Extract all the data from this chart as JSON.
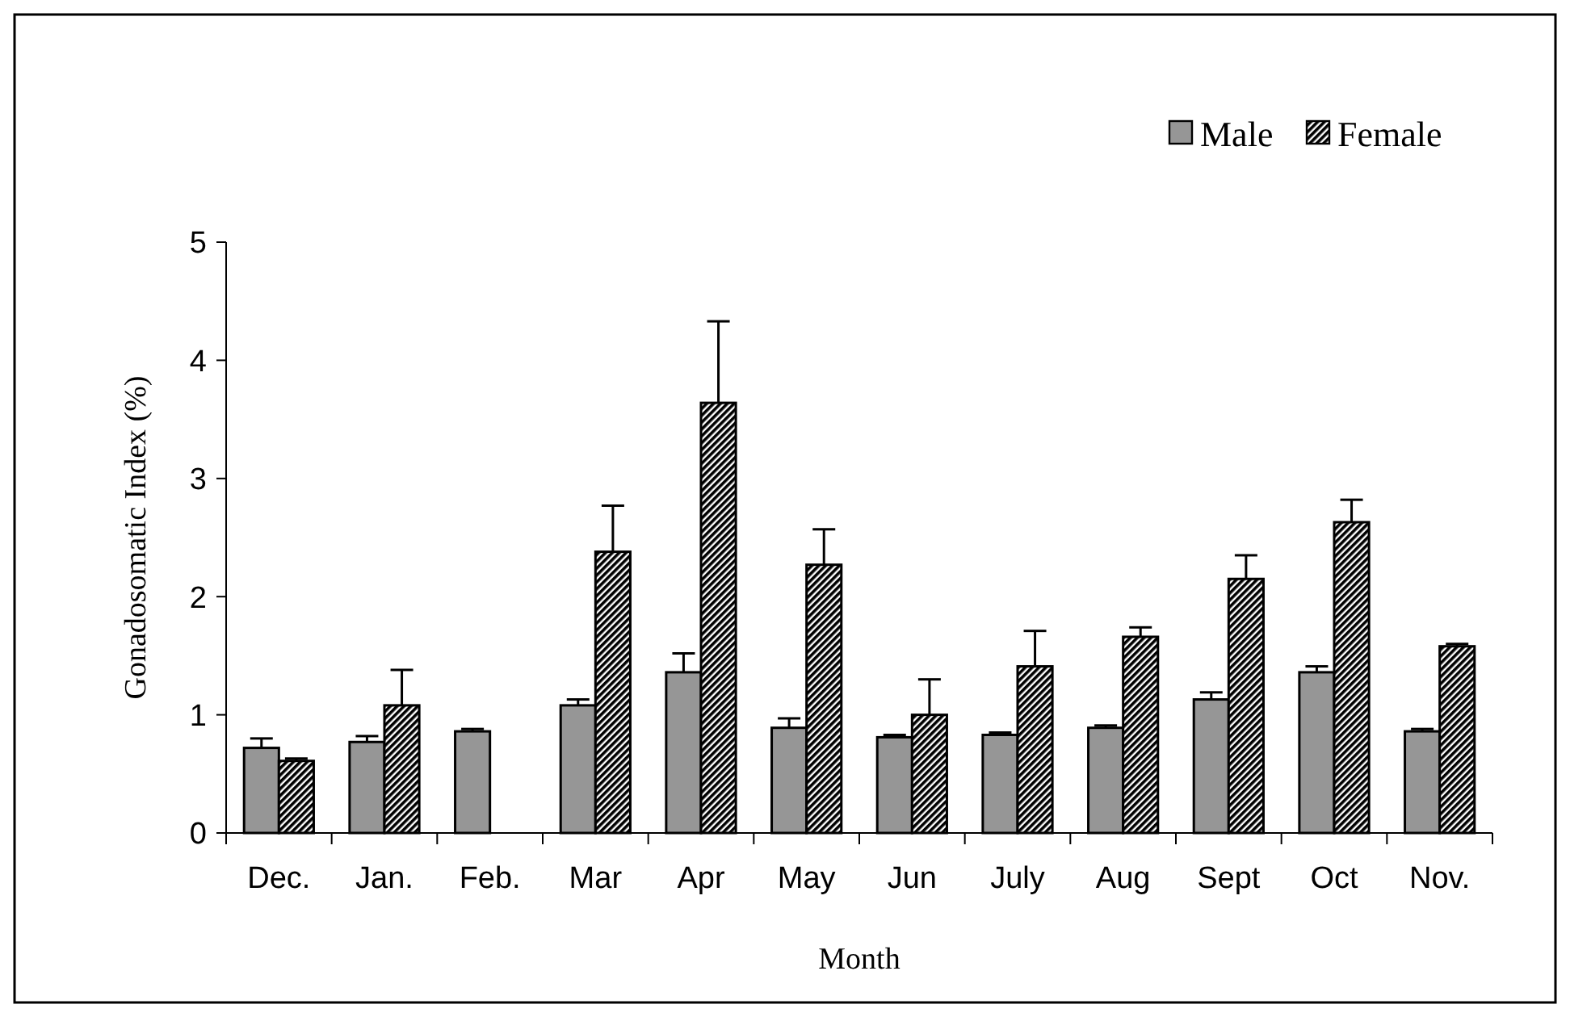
{
  "chart_data": {
    "type": "bar",
    "xlabel": "Month",
    "ylabel": "Gonadosomatic Index (%)",
    "categories": [
      "Dec.",
      "Jan.",
      "Feb.",
      "Mar",
      "Apr",
      "May",
      "Jun",
      "July",
      "Aug",
      "Sept",
      "Oct",
      "Nov."
    ],
    "series": [
      {
        "name": "Male",
        "color": "#969696",
        "values": [
          0.72,
          0.77,
          0.86,
          1.08,
          1.36,
          0.89,
          0.81,
          0.83,
          0.89,
          1.13,
          1.36,
          0.86
        ],
        "errors": [
          0.08,
          0.05,
          0.02,
          0.05,
          0.16,
          0.08,
          0.02,
          0.02,
          0.02,
          0.06,
          0.05,
          0.02
        ]
      },
      {
        "name": "Female",
        "color": "#000000",
        "values": [
          0.61,
          1.08,
          null,
          2.38,
          3.64,
          2.27,
          1.0,
          1.41,
          1.66,
          2.15,
          2.63,
          1.58
        ],
        "errors": [
          0.02,
          0.3,
          null,
          0.39,
          0.69,
          0.3,
          0.3,
          0.3,
          0.08,
          0.2,
          0.19,
          0.02
        ]
      }
    ],
    "ylim": [
      0,
      5
    ],
    "yticks": [
      0,
      1,
      2,
      3,
      4,
      5
    ],
    "grid": false,
    "legend": "top right"
  }
}
